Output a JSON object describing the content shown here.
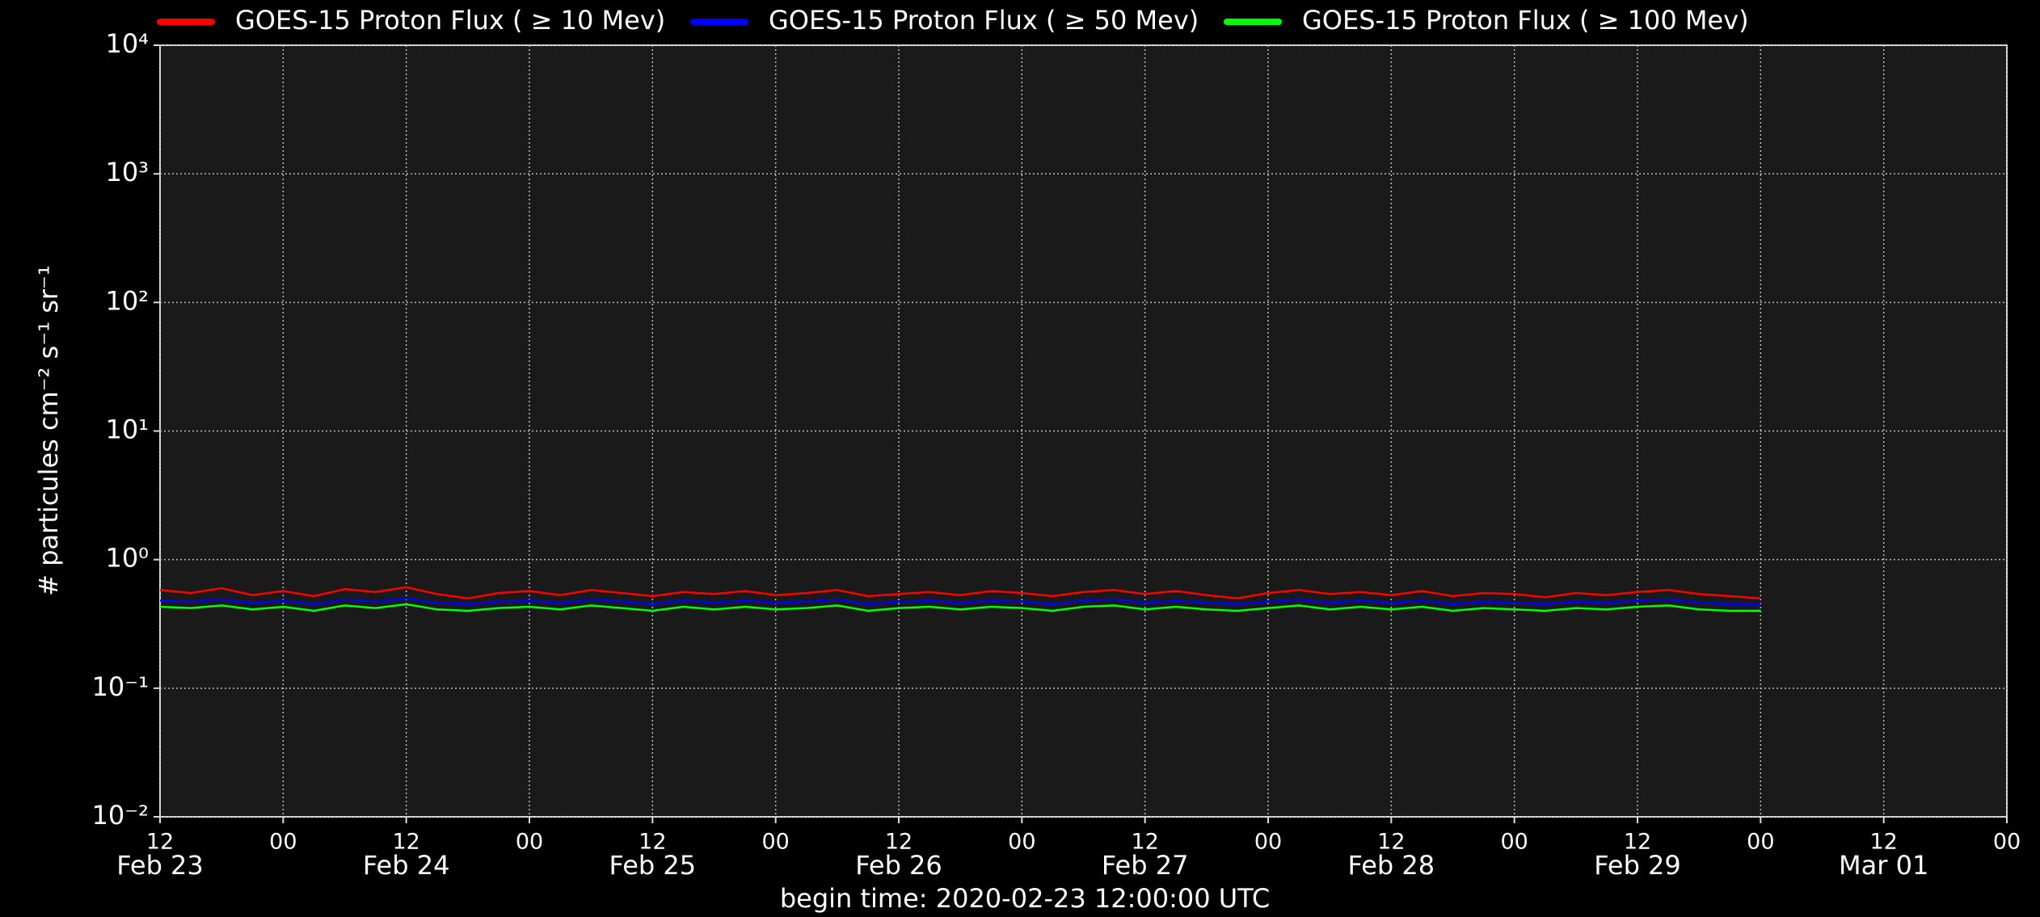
{
  "chart_data": {
    "type": "line",
    "ylabel": "# particules cm⁻² s⁻¹ sr⁻¹",
    "xlabel": "begin time: 2020-02-23 12:00:00 UTC",
    "log_y": true,
    "grid": true,
    "legend": "upper center",
    "x": [
      "2020-02-23T12:00",
      "2020-02-23T15:00",
      "2020-02-23T18:00",
      "2020-02-23T21:00",
      "2020-02-24T00:00",
      "2020-02-24T03:00",
      "2020-02-24T06:00",
      "2020-02-24T09:00",
      "2020-02-24T12:00",
      "2020-02-24T15:00",
      "2020-02-24T18:00",
      "2020-02-24T21:00",
      "2020-02-25T00:00",
      "2020-02-25T03:00",
      "2020-02-25T06:00",
      "2020-02-25T09:00",
      "2020-02-25T12:00",
      "2020-02-25T15:00",
      "2020-02-25T18:00",
      "2020-02-25T21:00",
      "2020-02-26T00:00",
      "2020-02-26T03:00",
      "2020-02-26T06:00",
      "2020-02-26T09:00",
      "2020-02-26T12:00",
      "2020-02-26T15:00",
      "2020-02-26T18:00",
      "2020-02-26T21:00",
      "2020-02-27T00:00",
      "2020-02-27T03:00",
      "2020-02-27T06:00",
      "2020-02-27T09:00",
      "2020-02-27T12:00",
      "2020-02-27T15:00",
      "2020-02-27T18:00",
      "2020-02-27T21:00",
      "2020-02-28T00:00",
      "2020-02-28T03:00",
      "2020-02-28T06:00",
      "2020-02-28T09:00",
      "2020-02-28T12:00",
      "2020-02-28T15:00",
      "2020-02-28T18:00",
      "2020-02-28T21:00",
      "2020-02-29T00:00",
      "2020-02-29T03:00",
      "2020-02-29T06:00",
      "2020-02-29T09:00",
      "2020-02-29T12:00",
      "2020-02-29T15:00",
      "2020-02-29T18:00",
      "2020-02-29T21:00",
      "2020-03-01T00:00"
    ],
    "series": [
      {
        "name": "GOES-15 Proton Flux ( ≥ 10 Mev)",
        "color": "#ff0000",
        "values": [
          0.58,
          0.55,
          0.6,
          0.53,
          0.57,
          0.52,
          0.59,
          0.56,
          0.61,
          0.54,
          0.5,
          0.55,
          0.57,
          0.53,
          0.58,
          0.55,
          0.52,
          0.56,
          0.54,
          0.57,
          0.53,
          0.55,
          0.58,
          0.52,
          0.54,
          0.56,
          0.53,
          0.57,
          0.55,
          0.52,
          0.56,
          0.58,
          0.54,
          0.57,
          0.53,
          0.5,
          0.55,
          0.58,
          0.54,
          0.56,
          0.53,
          0.57,
          0.52,
          0.55,
          0.54,
          0.51,
          0.55,
          0.53,
          0.56,
          0.58,
          0.54,
          0.52,
          0.5
        ]
      },
      {
        "name": "GOES-15 Proton Flux ( ≥ 50 Mev)",
        "color": "#0000ff",
        "values": [
          0.48,
          0.47,
          0.49,
          0.46,
          0.48,
          0.45,
          0.49,
          0.47,
          0.5,
          0.46,
          0.45,
          0.47,
          0.48,
          0.46,
          0.49,
          0.47,
          0.45,
          0.48,
          0.46,
          0.48,
          0.46,
          0.47,
          0.49,
          0.45,
          0.47,
          0.48,
          0.46,
          0.48,
          0.47,
          0.45,
          0.48,
          0.49,
          0.46,
          0.48,
          0.46,
          0.45,
          0.47,
          0.49,
          0.46,
          0.48,
          0.46,
          0.48,
          0.45,
          0.47,
          0.46,
          0.45,
          0.47,
          0.46,
          0.48,
          0.49,
          0.46,
          0.45,
          0.45
        ]
      },
      {
        "name": "GOES-15 Proton Flux ( ≥ 100 Mev)",
        "color": "#00ff00",
        "values": [
          0.43,
          0.42,
          0.44,
          0.41,
          0.43,
          0.4,
          0.44,
          0.42,
          0.45,
          0.41,
          0.4,
          0.42,
          0.43,
          0.41,
          0.44,
          0.42,
          0.4,
          0.43,
          0.41,
          0.43,
          0.41,
          0.42,
          0.44,
          0.4,
          0.42,
          0.43,
          0.41,
          0.43,
          0.42,
          0.4,
          0.43,
          0.44,
          0.41,
          0.43,
          0.41,
          0.4,
          0.42,
          0.44,
          0.41,
          0.43,
          0.41,
          0.43,
          0.4,
          0.42,
          0.41,
          0.4,
          0.42,
          0.41,
          0.43,
          0.44,
          0.41,
          0.4,
          0.4
        ]
      }
    ],
    "xlim": [
      "2020-02-23T12:00",
      "2020-03-02T00:00"
    ],
    "xticks": [
      {
        "value": "2020-02-23T12:00",
        "label": "12"
      },
      {
        "value": "2020-02-24T00:00",
        "label": "00"
      },
      {
        "value": "2020-02-24T12:00",
        "label": "12"
      },
      {
        "value": "2020-02-25T00:00",
        "label": "00"
      },
      {
        "value": "2020-02-25T12:00",
        "label": "12"
      },
      {
        "value": "2020-02-26T00:00",
        "label": "00"
      },
      {
        "value": "2020-02-26T12:00",
        "label": "12"
      },
      {
        "value": "2020-02-27T00:00",
        "label": "00"
      },
      {
        "value": "2020-02-27T12:00",
        "label": "12"
      },
      {
        "value": "2020-02-28T00:00",
        "label": "00"
      },
      {
        "value": "2020-02-28T12:00",
        "label": "12"
      },
      {
        "value": "2020-02-29T00:00",
        "label": "00"
      },
      {
        "value": "2020-02-29T12:00",
        "label": "12"
      },
      {
        "value": "2020-03-01T00:00",
        "label": "00"
      },
      {
        "value": "2020-03-01T12:00",
        "label": "12"
      },
      {
        "value": "2020-03-02T00:00",
        "label": "00"
      }
    ],
    "xtick_days": [
      {
        "value": "2020-02-23T12:00",
        "label": "Feb 23"
      },
      {
        "value": "2020-02-24T12:00",
        "label": "Feb 24"
      },
      {
        "value": "2020-02-25T12:00",
        "label": "Feb 25"
      },
      {
        "value": "2020-02-26T12:00",
        "label": "Feb 26"
      },
      {
        "value": "2020-02-27T12:00",
        "label": "Feb 27"
      },
      {
        "value": "2020-02-28T12:00",
        "label": "Feb 28"
      },
      {
        "value": "2020-02-29T12:00",
        "label": "Feb 29"
      },
      {
        "value": "2020-03-01T12:00",
        "label": "Mar 01"
      }
    ],
    "ylim": [
      0.01,
      10000
    ],
    "yticks": [
      {
        "value": 0.01,
        "label": "10⁻²"
      },
      {
        "value": 0.1,
        "label": "10⁻¹"
      },
      {
        "value": 1,
        "label": "10⁰"
      },
      {
        "value": 10,
        "label": "10¹"
      },
      {
        "value": 100,
        "label": "10²"
      },
      {
        "value": 1000,
        "label": "10³"
      },
      {
        "value": 10000,
        "label": "10⁴"
      }
    ]
  }
}
